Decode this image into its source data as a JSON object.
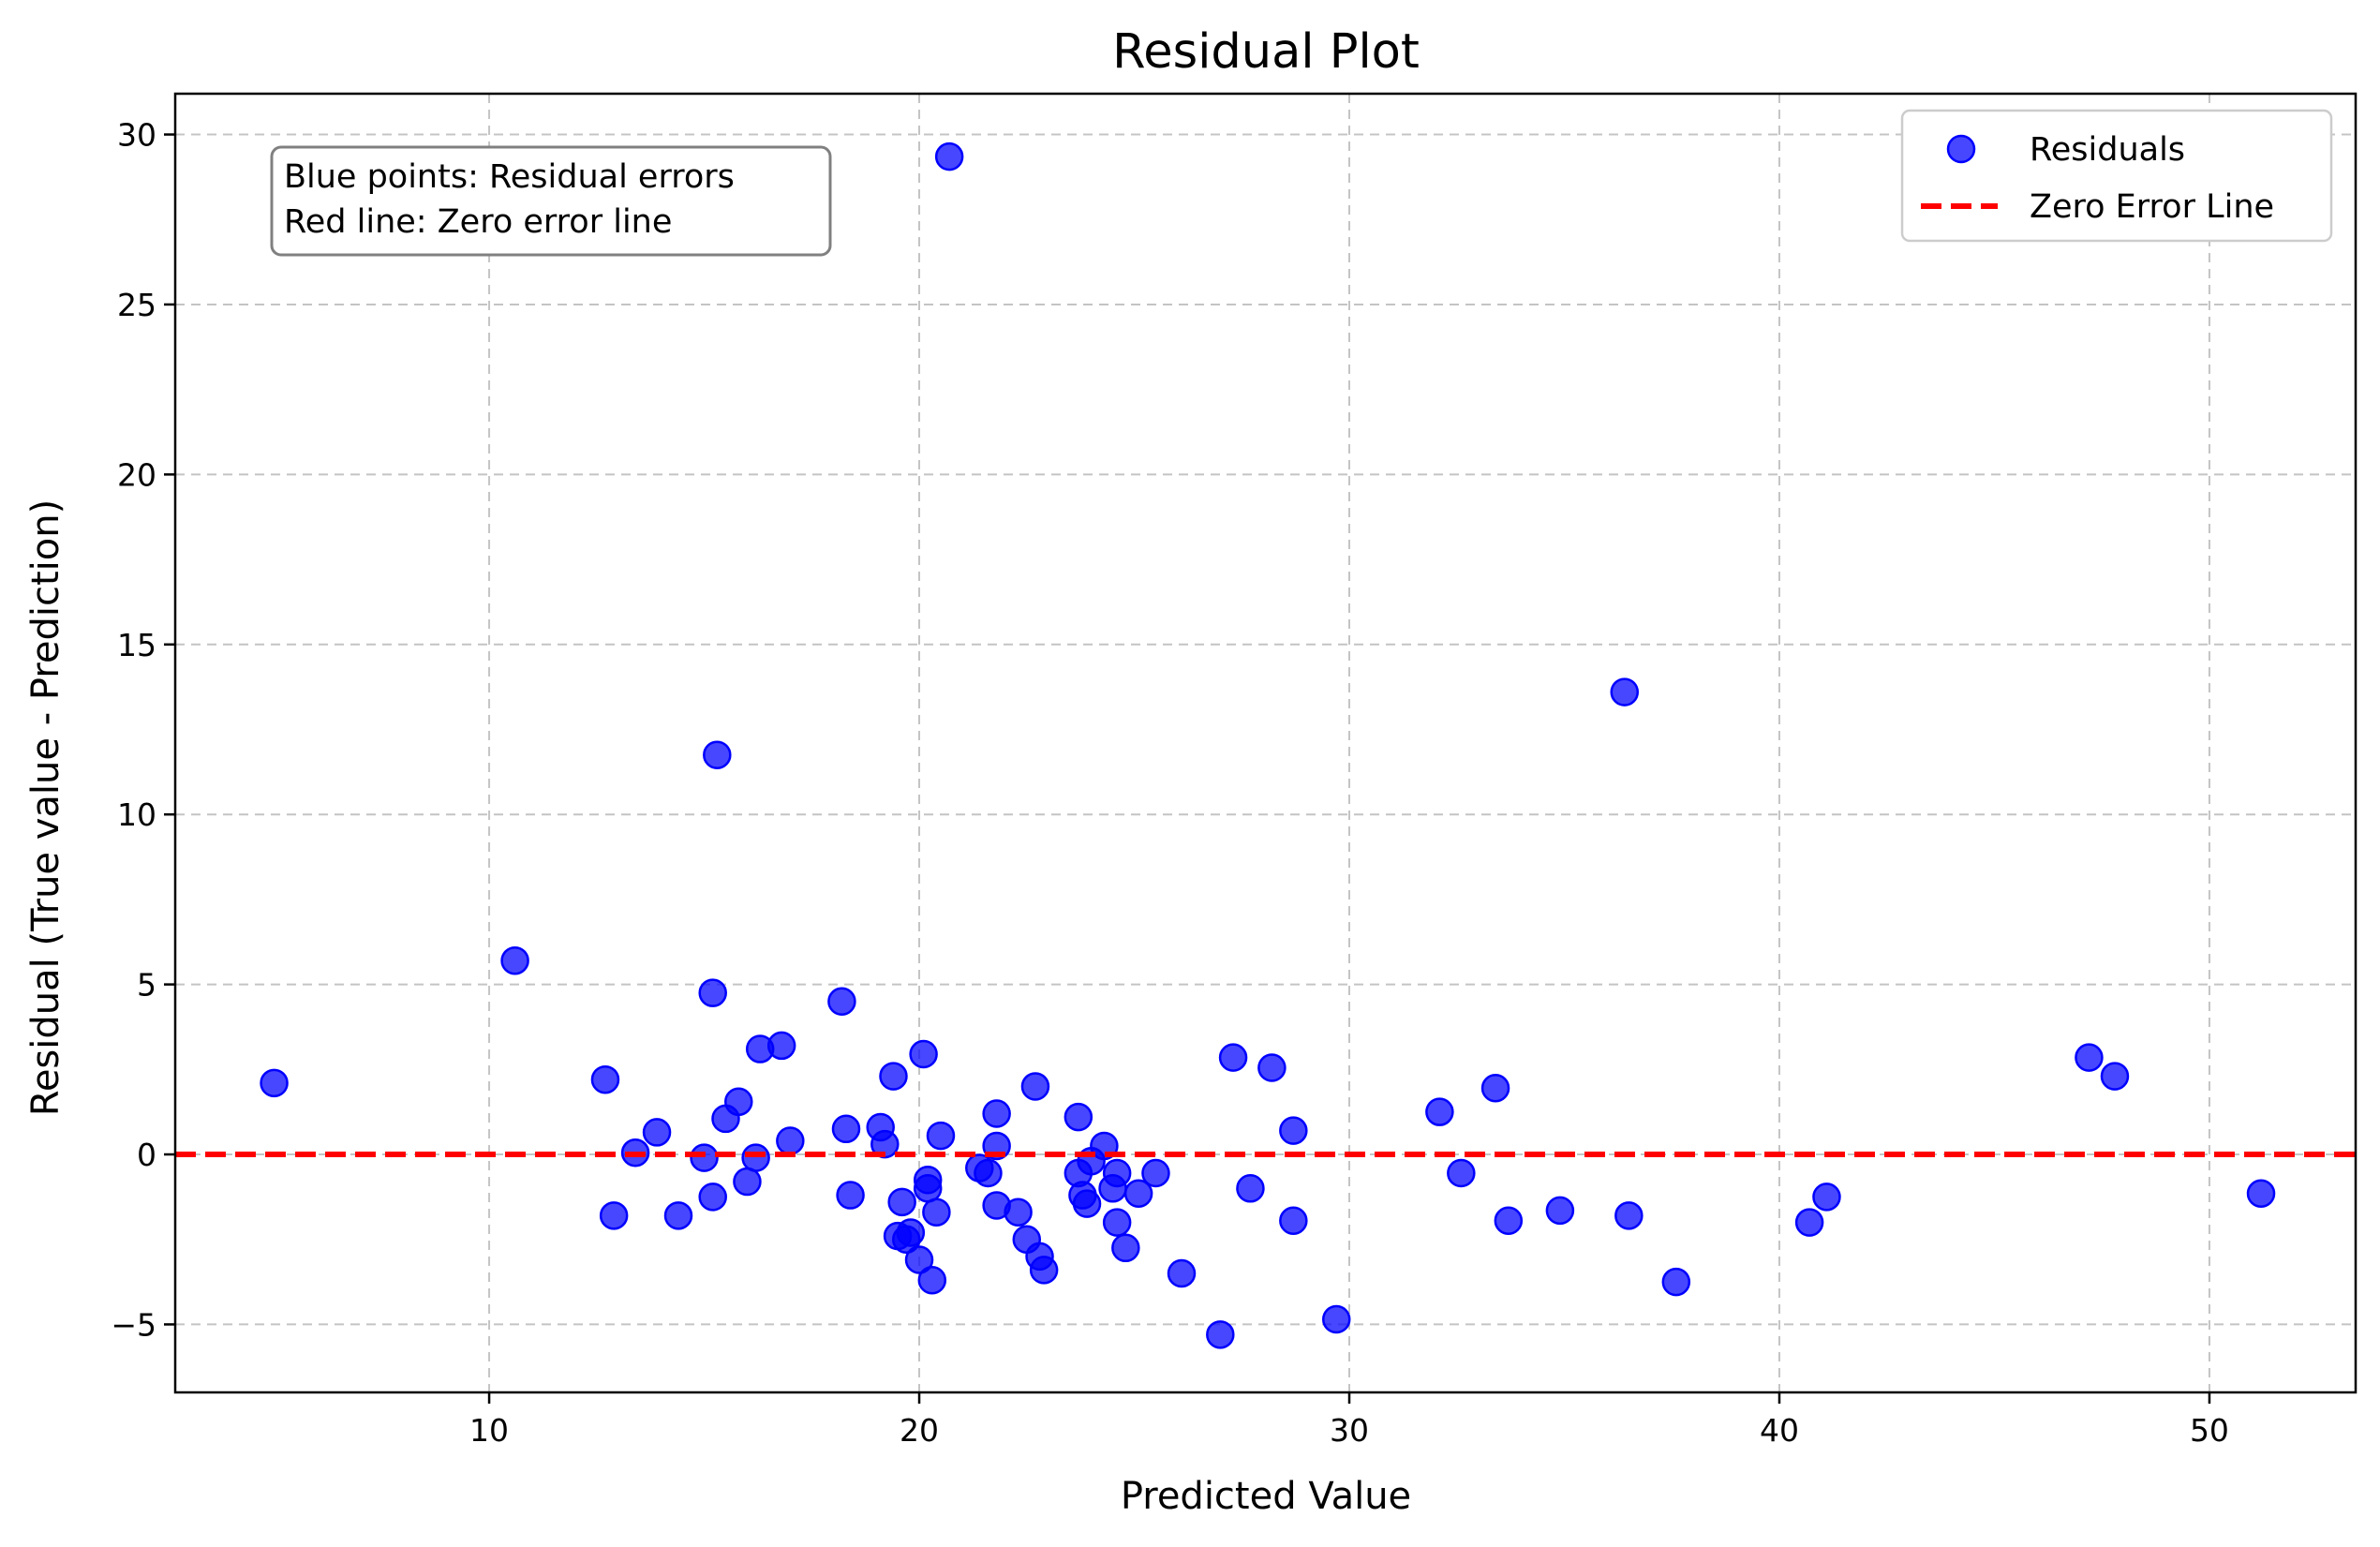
{
  "colors": {
    "points": "#0000ff",
    "zero_line": "#ff0000",
    "grid": "#b0b0b0",
    "annotation_border": "#808080"
  },
  "chart_data": {
    "type": "scatter",
    "title": "Residual Plot",
    "xlabel": "Predicted Value",
    "ylabel": "Residual (True value - Prediction)",
    "xlim": [
      2.7,
      53.4
    ],
    "ylim": [
      -7.0,
      31.2
    ],
    "xticks": [
      10,
      20,
      30,
      40,
      50
    ],
    "yticks": [
      -5,
      0,
      5,
      10,
      15,
      20,
      25,
      30
    ],
    "xtick_labels": [
      "10",
      "20",
      "30",
      "40",
      "50"
    ],
    "ytick_labels": [
      "−5",
      "0",
      "5",
      "10",
      "15",
      "20",
      "25",
      "30"
    ],
    "grid": true,
    "grid_style": "dashed",
    "legend_position": "top-right",
    "legend": [
      {
        "label": "Residuals",
        "kind": "marker"
      },
      {
        "label": "Zero Error Line",
        "kind": "dashed-line"
      }
    ],
    "annotation": [
      "Blue points: Residual errors",
      "Red line: Zero error line"
    ],
    "zero_line_y": 0,
    "series": [
      {
        "name": "Residuals",
        "points": [
          [
            5.0,
            2.1
          ],
          [
            10.6,
            5.7
          ],
          [
            12.7,
            2.2
          ],
          [
            12.9,
            -1.8
          ],
          [
            13.4,
            0.05
          ],
          [
            13.9,
            0.65
          ],
          [
            14.4,
            -1.8
          ],
          [
            15.0,
            -0.1
          ],
          [
            15.2,
            -1.25
          ],
          [
            15.2,
            4.75
          ],
          [
            15.3,
            11.75
          ],
          [
            15.5,
            1.05
          ],
          [
            15.8,
            1.55
          ],
          [
            16.0,
            -0.8
          ],
          [
            16.2,
            -0.1
          ],
          [
            16.3,
            3.1
          ],
          [
            16.8,
            3.2
          ],
          [
            17.0,
            0.4
          ],
          [
            18.2,
            4.5
          ],
          [
            18.3,
            0.75
          ],
          [
            18.4,
            -1.2
          ],
          [
            19.1,
            0.8
          ],
          [
            19.2,
            0.3
          ],
          [
            19.4,
            2.3
          ],
          [
            19.5,
            -2.4
          ],
          [
            19.6,
            -1.4
          ],
          [
            19.7,
            -2.5
          ],
          [
            19.8,
            -2.3
          ],
          [
            20.0,
            -3.1
          ],
          [
            20.1,
            2.95
          ],
          [
            20.2,
            -1.0
          ],
          [
            20.2,
            -0.75
          ],
          [
            20.3,
            -3.7
          ],
          [
            20.4,
            -1.7
          ],
          [
            20.5,
            0.55
          ],
          [
            20.7,
            29.35
          ],
          [
            21.4,
            -0.4
          ],
          [
            21.6,
            -0.55
          ],
          [
            21.8,
            1.2
          ],
          [
            21.8,
            0.25
          ],
          [
            21.8,
            -1.5
          ],
          [
            22.3,
            -1.7
          ],
          [
            22.5,
            -2.5
          ],
          [
            22.7,
            2.0
          ],
          [
            22.8,
            -3.0
          ],
          [
            22.9,
            -3.4
          ],
          [
            23.7,
            1.1
          ],
          [
            23.7,
            -0.55
          ],
          [
            23.8,
            -1.2
          ],
          [
            23.9,
            -1.45
          ],
          [
            24.0,
            -0.2
          ],
          [
            24.3,
            0.25
          ],
          [
            24.5,
            -1.0
          ],
          [
            24.6,
            -0.55
          ],
          [
            24.6,
            -2.0
          ],
          [
            24.8,
            -2.75
          ],
          [
            25.1,
            -1.15
          ],
          [
            25.5,
            -0.55
          ],
          [
            26.1,
            -3.5
          ],
          [
            27.0,
            -5.3
          ],
          [
            27.3,
            2.85
          ],
          [
            27.7,
            -1.0
          ],
          [
            28.2,
            2.55
          ],
          [
            28.7,
            -1.95
          ],
          [
            28.7,
            0.7
          ],
          [
            29.7,
            -4.85
          ],
          [
            32.1,
            1.25
          ],
          [
            32.6,
            -0.55
          ],
          [
            33.4,
            1.95
          ],
          [
            33.7,
            -1.95
          ],
          [
            34.9,
            -1.65
          ],
          [
            36.4,
            13.6
          ],
          [
            36.5,
            -1.8
          ],
          [
            37.6,
            -3.75
          ],
          [
            40.7,
            -2.0
          ],
          [
            41.1,
            -1.25
          ],
          [
            47.2,
            2.85
          ],
          [
            47.8,
            2.3
          ],
          [
            51.2,
            -1.15
          ]
        ]
      }
    ]
  }
}
